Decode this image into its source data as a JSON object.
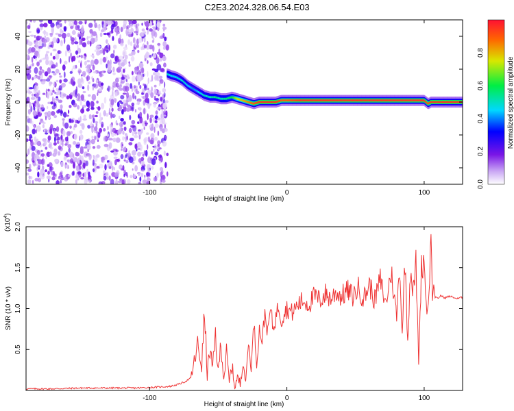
{
  "title": "C2E3.2024.328.06.54.E03",
  "colors": {
    "snr_line": "#ee3333",
    "frame": "#000000",
    "background": "#ffffff"
  },
  "chart_data": [
    {
      "type": "heatmap",
      "xlabel": "Height of straight line (km)",
      "ylabel": "Frequency (Hz)",
      "xlim": [
        -190,
        128
      ],
      "ylim": [
        -50,
        50
      ],
      "x_ticks": [
        -100,
        0,
        100
      ],
      "x_tick_labels": [
        "-100",
        "0",
        "100"
      ],
      "y_ticks": [
        -40,
        -20,
        0,
        20,
        40
      ],
      "y_tick_labels": [
        "-40",
        "-20",
        "0",
        "20",
        "40"
      ],
      "colorbar": {
        "label": "Normalized spectral amplitude",
        "range": [
          0,
          1
        ],
        "ticks": [
          0.0,
          0.2,
          0.4,
          0.6,
          0.8
        ],
        "tick_labels": [
          "0.0",
          "0.2",
          "0.4",
          "0.6",
          "0.8"
        ],
        "colormap": "rainbow (white → purple → blue → cyan → green → yellow → red)"
      },
      "noise_region_x": [
        -190,
        -87
      ],
      "ridge": {
        "x": [
          -87,
          -84,
          -80,
          -76,
          -72,
          -68,
          -64,
          -60,
          -56,
          -52,
          -48,
          -44,
          -40,
          -36,
          -32,
          -28,
          -24,
          -20,
          -16,
          -12,
          -8,
          -4,
          0,
          10,
          20,
          30,
          40,
          50,
          60,
          70,
          80,
          90,
          100,
          103,
          105,
          110,
          120,
          128
        ],
        "freq": [
          17,
          16,
          15,
          13,
          10,
          8,
          6,
          4,
          3,
          3,
          2,
          2,
          3,
          2,
          1,
          0,
          -1,
          0,
          0,
          0,
          0,
          1,
          1,
          1,
          1,
          1,
          1,
          1,
          1,
          1,
          1,
          1,
          1,
          -1,
          0,
          0,
          0,
          0
        ],
        "amplitude": [
          0.5,
          0.45,
          0.45,
          0.5,
          0.45,
          0.4,
          0.45,
          0.5,
          0.5,
          0.55,
          0.5,
          0.55,
          0.6,
          0.75,
          0.8,
          0.85,
          0.9,
          0.95,
          0.95,
          0.95,
          0.95,
          0.9,
          0.9,
          0.95,
          0.95,
          0.95,
          0.95,
          0.95,
          0.95,
          0.95,
          0.95,
          0.95,
          0.95,
          0.9,
          0.95,
          0.95,
          0.95,
          0.95
        ]
      }
    },
    {
      "type": "line",
      "xlabel": "Height of straight line (km)",
      "ylabel": "SNR (10 * v/v)",
      "y_scale_note": "(x10",
      "y_scale_exponent": "4",
      "xlim": [
        -190,
        128
      ],
      "ylim": [
        0.0,
        2.0
      ],
      "x_ticks": [
        -100,
        0,
        100
      ],
      "x_tick_labels": [
        "-100",
        "0",
        "100"
      ],
      "y_ticks": [
        0.5,
        1.0,
        1.5,
        2.0
      ],
      "y_tick_labels": [
        "0.5",
        "1.0",
        "1.5",
        "2.0"
      ],
      "series": [
        {
          "x": [
            -190,
            -170,
            -150,
            -130,
            -110,
            -95,
            -85,
            -80,
            -75,
            -70,
            -68,
            -65,
            -62,
            -60,
            -58,
            -56,
            -54,
            -52,
            -50,
            -48,
            -46,
            -44,
            -42,
            -40,
            -38,
            -36,
            -34,
            -32,
            -30,
            -28,
            -26,
            -24,
            -22,
            -20,
            -18,
            -16,
            -14,
            -12,
            -10,
            -8,
            -6,
            -4,
            -2,
            0,
            4,
            8,
            12,
            16,
            20,
            24,
            28,
            32,
            36,
            40,
            44,
            48,
            52,
            56,
            60,
            64,
            68,
            72,
            76,
            80,
            82,
            84,
            86,
            88,
            90,
            92,
            94,
            96,
            98,
            100,
            102,
            104,
            105,
            106,
            107,
            108,
            110,
            112,
            115,
            118,
            121,
            124,
            128
          ],
          "y": [
            0.02,
            0.02,
            0.03,
            0.03,
            0.03,
            0.04,
            0.05,
            0.07,
            0.1,
            0.15,
            0.3,
            0.55,
            0.3,
            0.95,
            0.2,
            0.5,
            0.25,
            0.7,
            0.2,
            0.6,
            0.15,
            0.45,
            0.1,
            0.3,
            0.05,
            0.15,
            0.08,
            0.4,
            0.1,
            0.6,
            0.25,
            0.85,
            0.3,
            0.75,
            0.6,
            0.95,
            0.7,
            1.0,
            0.75,
            0.9,
            1.05,
            0.85,
            0.95,
            1.0,
            0.95,
            1.05,
            1.1,
            1.05,
            1.15,
            1.1,
            1.18,
            1.12,
            1.2,
            1.15,
            1.22,
            1.15,
            1.25,
            1.12,
            1.3,
            1.1,
            1.35,
            1.05,
            1.45,
            0.9,
            1.55,
            0.7,
            1.6,
            0.6,
            1.5,
            1.2,
            1.55,
            0.35,
            1.5,
            1.6,
            0.9,
            1.35,
            2.0,
            1.1,
            1.3,
            1.14,
            1.12,
            1.16,
            1.13,
            1.15,
            1.14,
            1.12,
            1.14
          ]
        }
      ]
    }
  ]
}
